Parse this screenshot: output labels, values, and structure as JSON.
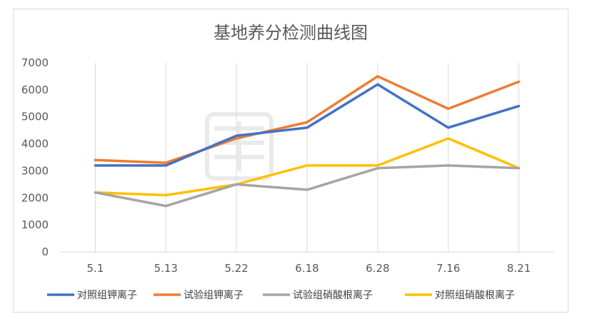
{
  "chart_data": {
    "type": "line",
    "title": "基地养分检测曲线图",
    "xlabel": "",
    "ylabel": "",
    "categories": [
      "5.1",
      "5.13",
      "5.22",
      "6.18",
      "6.28",
      "7.16",
      "8.21"
    ],
    "ylim": [
      0,
      7000
    ],
    "yticks": [
      "0",
      "1000",
      "2000",
      "3000",
      "4000",
      "5000",
      "6000",
      "7000"
    ],
    "grid": "vertical",
    "legend_position": "bottom",
    "watermark": "耕道 KenTao",
    "series": [
      {
        "name": "对照组钾离子",
        "color": "#4472c4",
        "values": [
          3200,
          3200,
          4300,
          4600,
          6200,
          4600,
          5400
        ]
      },
      {
        "name": "试验组钾离子",
        "color": "#ed7d31",
        "values": [
          3400,
          3300,
          4200,
          4800,
          6500,
          5300,
          6300
        ]
      },
      {
        "name": "试验组硝酸根离子",
        "color": "#a5a5a5",
        "values": [
          2200,
          1700,
          2500,
          2300,
          3100,
          3200,
          3100
        ]
      },
      {
        "name": "对照组硝酸根离子",
        "color": "#ffc000",
        "values": [
          2200,
          2100,
          2500,
          3200,
          3200,
          4200,
          3100
        ]
      }
    ]
  }
}
